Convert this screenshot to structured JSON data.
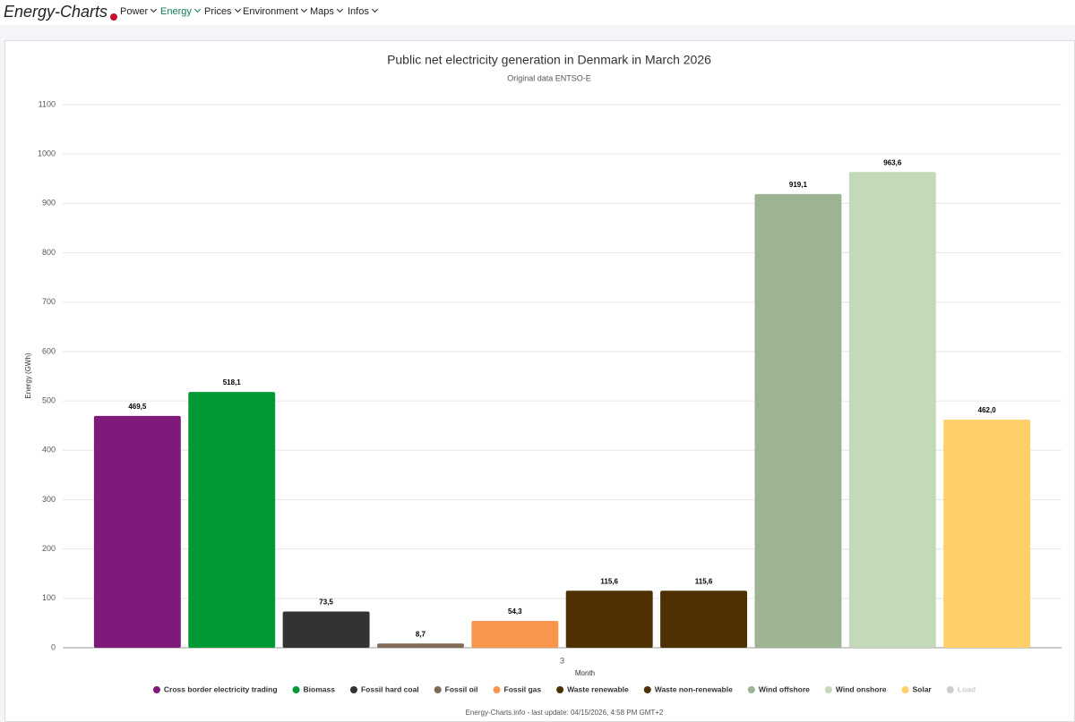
{
  "nav": {
    "brand": "Energy-Charts",
    "items": [
      "Power",
      "Energy",
      "Prices",
      "Environment",
      "Maps",
      "Infos"
    ]
  },
  "footer": "Energy-Charts.info - last update: 04/15/2026, 4:58 PM GMT+2",
  "chart_data": {
    "type": "bar",
    "title": "Public net electricity generation in Denmark in March 2026",
    "subtitle": "Original data ENTSO-E",
    "y_label": "Energy (GWh)",
    "x_label": "Month",
    "categories": [
      "3"
    ],
    "ylim": [
      0,
      1100
    ],
    "yticks": [
      0,
      100,
      200,
      300,
      400,
      500,
      600,
      700,
      800,
      900,
      1000,
      1100
    ],
    "grid": true,
    "series": [
      {
        "name": "Cross border electricity trading",
        "color": "#7f1a7a",
        "values": [
          469.5
        ],
        "value_labels": [
          "469,5"
        ]
      },
      {
        "name": "Biomass",
        "color": "#009933",
        "values": [
          518.1
        ],
        "value_labels": [
          "518,1"
        ]
      },
      {
        "name": "Fossil hard coal",
        "color": "#333333",
        "values": [
          73.5
        ],
        "value_labels": [
          "73,5"
        ]
      },
      {
        "name": "Fossil oil",
        "color": "#7f6a56",
        "values": [
          8.7
        ],
        "value_labels": [
          "8,7"
        ]
      },
      {
        "name": "Fossil gas",
        "color": "#f9954d",
        "values": [
          54.3
        ],
        "value_labels": [
          "54,3"
        ]
      },
      {
        "name": "Waste renewable",
        "color": "#4f3003",
        "values": [
          115.6
        ],
        "value_labels": [
          "115,6"
        ]
      },
      {
        "name": "Waste non-renewable",
        "color": "#4f3003",
        "values": [
          115.6
        ],
        "value_labels": [
          "115,6"
        ]
      },
      {
        "name": "Wind offshore",
        "color": "#9cb394",
        "values": [
          919.1
        ],
        "value_labels": [
          "919,1"
        ]
      },
      {
        "name": "Wind onshore",
        "color": "#c4d9b9",
        "values": [
          963.6
        ],
        "value_labels": [
          "963,6"
        ]
      },
      {
        "name": "Solar",
        "color": "#ffcf69",
        "values": [
          462.0
        ],
        "value_labels": [
          "462,0"
        ]
      },
      {
        "name": "Load",
        "color": "#cccccc",
        "values": [
          null
        ],
        "hidden": true
      }
    ]
  }
}
